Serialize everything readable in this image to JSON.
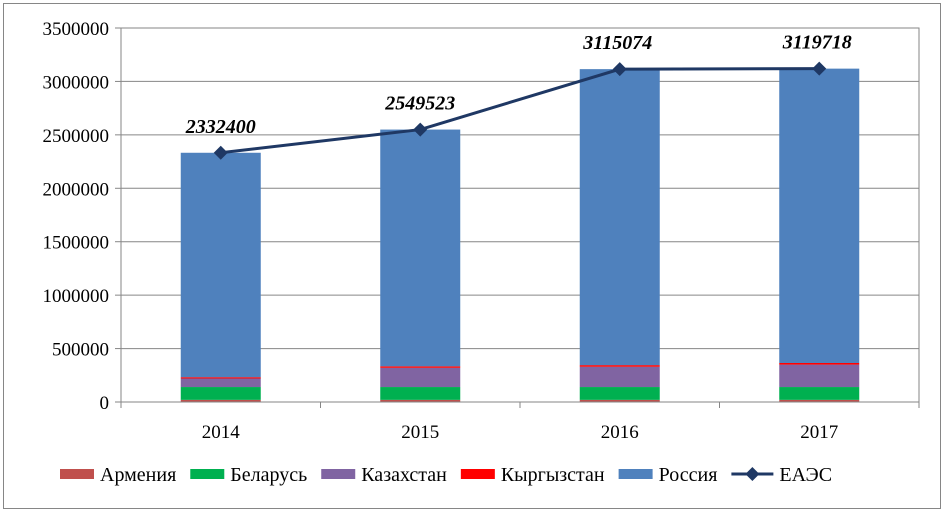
{
  "chart_data": {
    "type": "bar",
    "stacked": true,
    "categories": [
      "2014",
      "2015",
      "2016",
      "2017"
    ],
    "series": [
      {
        "name": "Армения",
        "color": "#C0504D",
        "values": [
          20000,
          20000,
          20000,
          20000
        ]
      },
      {
        "name": "Беларусь",
        "color": "#00B050",
        "values": [
          120000,
          120000,
          120000,
          120000
        ]
      },
      {
        "name": "Казахстан",
        "color": "#8064A2",
        "values": [
          80000,
          180000,
          190000,
          210000
        ]
      },
      {
        "name": "Кыргызстан",
        "color": "#FF0000",
        "values": [
          12000,
          14000,
          15000,
          15000
        ]
      },
      {
        "name": "Россия",
        "color": "#4F81BD",
        "values": [
          2100400,
          2215523,
          2770074,
          2754718
        ]
      }
    ],
    "line": {
      "name": "ЕАЭС",
      "color": "#1F3864",
      "values": [
        2332400,
        2549523,
        3115074,
        3119718
      ],
      "labels": [
        "2332400",
        "2549523",
        "3115074",
        "3119718"
      ]
    },
    "ylim": [
      0,
      3500000
    ],
    "yticks": [
      "0",
      "500000",
      "1000000",
      "1500000",
      "2000000",
      "2500000",
      "3000000",
      "3500000"
    ],
    "grid": true,
    "legend_position": "bottom",
    "title": "",
    "xlabel": "",
    "ylabel": ""
  }
}
